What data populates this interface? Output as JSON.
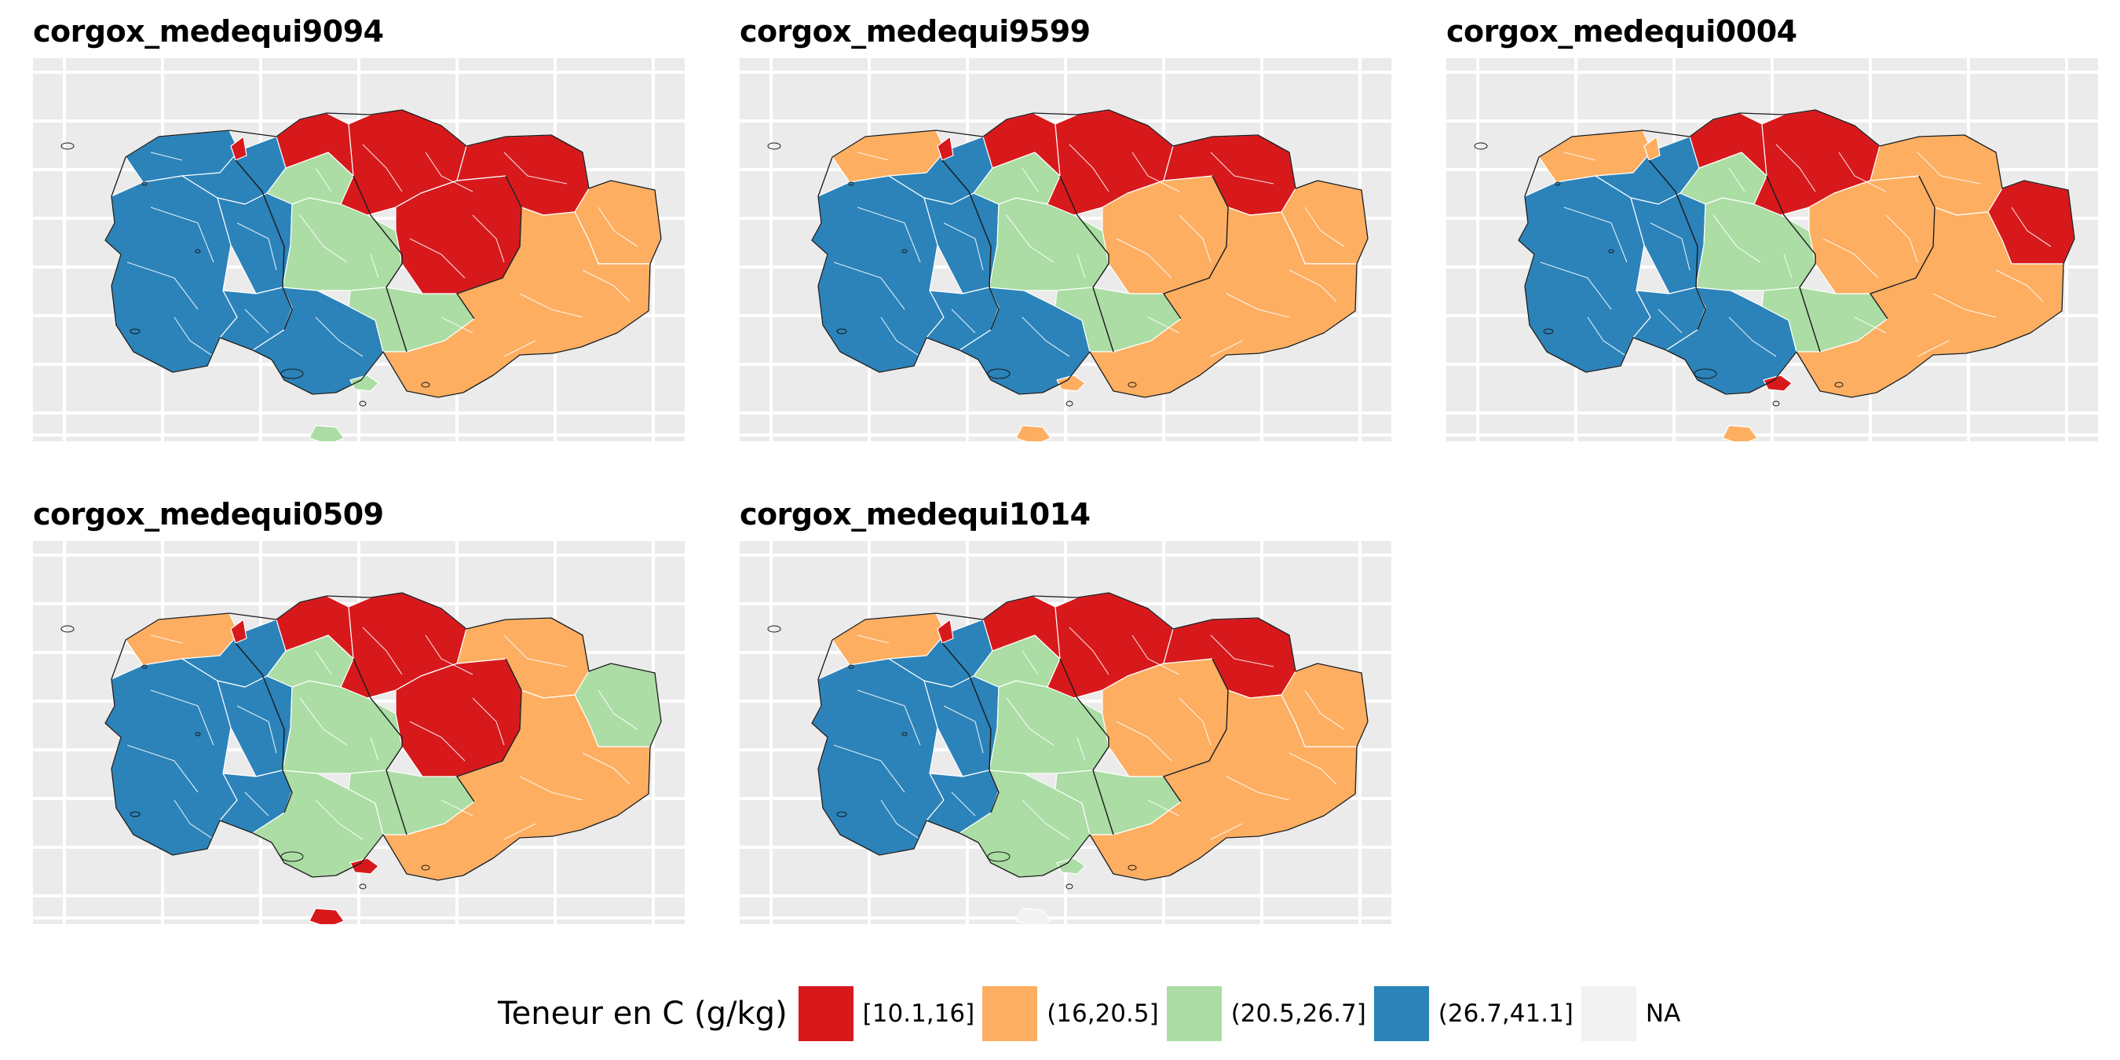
{
  "panels": [
    {
      "title": "corgox_medequi9094",
      "classes": {
        "nw": "c3",
        "w": "c3",
        "ncw": "c3",
        "cw": "c3",
        "sw": "c3",
        "s": "c3",
        "nc": "c2",
        "c": "c2",
        "sc": "c2",
        "n": "c0",
        "ne": "c0",
        "e": "c0",
        "ce": "c0",
        "far_e": "c1",
        "se": "c1",
        "n_island": "c0",
        "isle": "c2",
        "sw_isle": "c2"
      }
    },
    {
      "title": "corgox_medequi9599",
      "classes": {
        "nw": "c1",
        "w": "c3",
        "ncw": "c3",
        "cw": "c3",
        "sw": "c3",
        "s": "c3",
        "nc": "c2",
        "c": "c2",
        "sc": "c2",
        "n": "c0",
        "ne": "c0",
        "e": "c0",
        "ce": "c1",
        "far_e": "c1",
        "se": "c1",
        "n_island": "c0",
        "isle": "c1",
        "sw_isle": "c1"
      }
    },
    {
      "title": "corgox_medequi0004",
      "classes": {
        "nw": "c1",
        "w": "c3",
        "ncw": "c3",
        "cw": "c3",
        "sw": "c3",
        "s": "c3",
        "nc": "c2",
        "c": "c2",
        "sc": "c2",
        "n": "c0",
        "ne": "c0",
        "e": "c1",
        "ce": "c1",
        "far_e": "c0",
        "se": "c1",
        "n_island": "c1",
        "isle": "c1",
        "sw_isle": "c0"
      }
    },
    {
      "title": "corgox_medequi0509",
      "classes": {
        "nw": "c1",
        "w": "c3",
        "ncw": "c3",
        "cw": "c3",
        "sw": "c3",
        "s": "c2",
        "nc": "c2",
        "c": "c2",
        "sc": "c2",
        "n": "c0",
        "ne": "c0",
        "e": "c1",
        "ce": "c0",
        "far_e": "c2",
        "se": "c1",
        "n_island": "c0",
        "isle": "c0",
        "sw_isle": "c0"
      }
    },
    {
      "title": "corgox_medequi1014",
      "classes": {
        "nw": "c1",
        "w": "c3",
        "ncw": "c3",
        "cw": "c3",
        "sw": "c3",
        "s": "c2",
        "nc": "c2",
        "c": "c2",
        "sc": "c2",
        "n": "c0",
        "ne": "c0",
        "e": "c0",
        "ce": "c1",
        "far_e": "c1",
        "se": "c1",
        "n_island": "c0",
        "isle": "na",
        "sw_isle": "c2"
      }
    }
  ],
  "legend": {
    "title": "Teneur en C (g/kg)",
    "items": [
      {
        "key": "c0",
        "label": "[10.1,16]",
        "color": "#d7191c"
      },
      {
        "key": "c1",
        "label": "(16,20.5]",
        "color": "#fdae61"
      },
      {
        "key": "c2",
        "label": "(20.5,26.7]",
        "color": "#abdda4"
      },
      {
        "key": "c3",
        "label": "(26.7,41.1]",
        "color": "#2b83ba"
      },
      {
        "key": "na",
        "label": "NA",
        "color": "#f2f2f2"
      }
    ]
  },
  "colors": {
    "panel_background": "#ebebeb",
    "gridline": "#ffffff",
    "border": "#1a1a1a",
    "commune_border": "#ffffff"
  }
}
